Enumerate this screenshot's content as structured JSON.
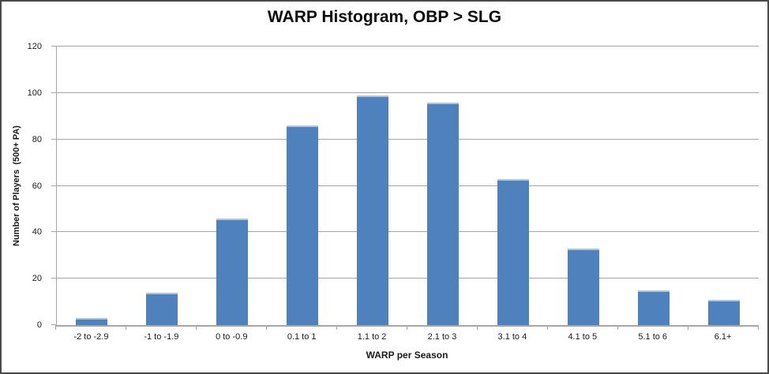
{
  "chart_data": {
    "type": "bar",
    "title": "WARP Histogram, OBP > SLG",
    "xlabel": "WARP per Season",
    "ylabel": "Number of Players  (500+ PA)",
    "categories": [
      "-2 to -2.9",
      "-1 to -1.9",
      "0 to -0.9",
      "0.1 to 1",
      "1.1 to 2",
      "2.1 to 3",
      "3.1 to 4",
      "4.1 to 5",
      "5.1 to 6",
      "6.1+"
    ],
    "values": [
      3,
      14,
      46,
      86,
      99,
      96,
      63,
      33,
      15,
      11
    ],
    "ylim": [
      0,
      120
    ],
    "yticks": [
      0,
      20,
      40,
      60,
      80,
      100,
      120
    ],
    "grid": true,
    "legend": false,
    "colors": {
      "bar_fill": "#4F81BD",
      "bar_top_highlight": "#AEC6E2",
      "gridline": "#A6A6A6",
      "axis_line": "#A6A6A6",
      "text": "#1A1A1A",
      "background": "#FFFFFF",
      "frame_border": "#4A4A4A"
    }
  }
}
